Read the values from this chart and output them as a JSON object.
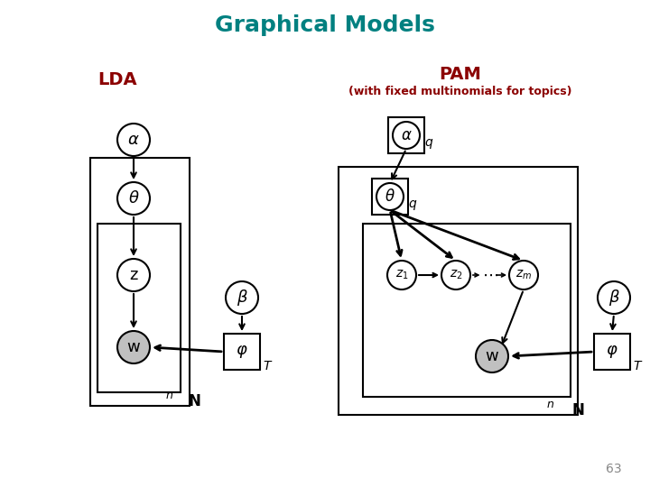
{
  "title": "Graphical Models",
  "title_color": "#008080",
  "title_fontsize": 18,
  "lda_label": "LDA",
  "pam_label": "PAM",
  "pam_sublabel": "(with fixed multinomials for topics)",
  "label_color": "#8B0000",
  "page_number": "63",
  "bg_color": "#ffffff"
}
